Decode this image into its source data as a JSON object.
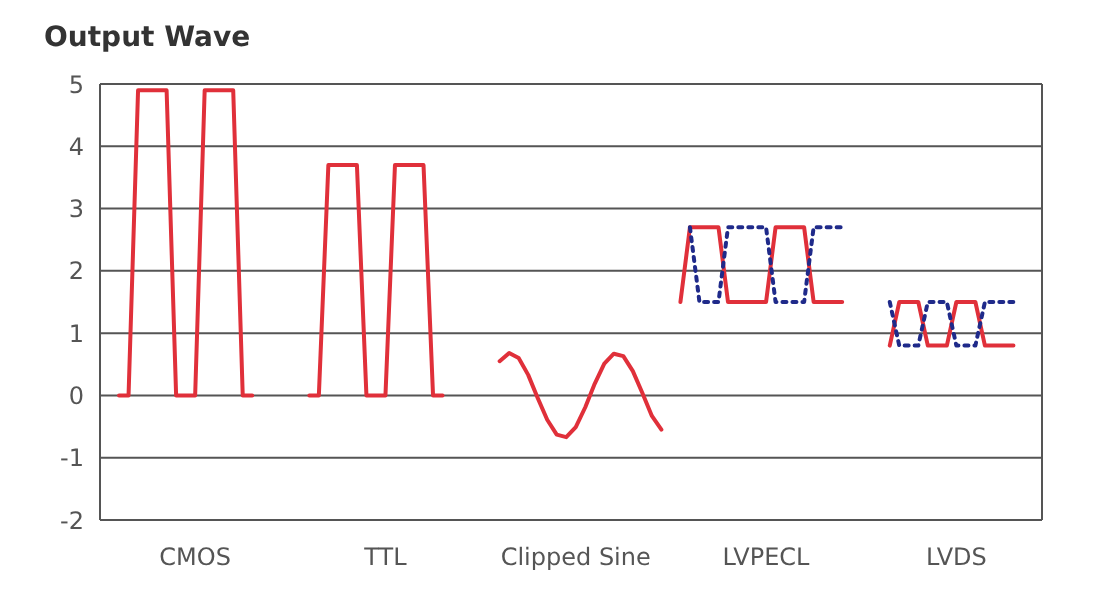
{
  "chart_data": {
    "type": "line",
    "title": "Output Wave",
    "categories": [
      null,
      null,
      null,
      null,
      null,
      null,
      null,
      null,
      null,
      null,
      "CMOS",
      null,
      null,
      null,
      null,
      null,
      null,
      null,
      null,
      null,
      null,
      null,
      null,
      null,
      null,
      null,
      null,
      null,
      null,
      null,
      "TTL",
      null,
      null,
      null,
      null,
      null,
      null,
      null,
      null,
      null,
      null,
      null,
      null,
      null,
      null,
      null,
      null,
      null,
      null,
      null,
      "Clipped Sine",
      null,
      null,
      null,
      null,
      null,
      null,
      null,
      null,
      null,
      null,
      null,
      null,
      null,
      null,
      null,
      null,
      null,
      null,
      null,
      "LVPECL",
      null,
      null,
      null,
      null,
      null,
      null,
      null,
      null,
      null,
      null,
      null,
      null,
      null,
      null,
      null,
      null,
      null,
      null,
      null,
      "LVDS",
      null,
      null,
      null,
      null,
      null,
      null,
      null,
      null,
      null
    ],
    "ylim": [
      -2,
      5
    ],
    "yticks": [
      -2,
      -1,
      0,
      1,
      2,
      3,
      4,
      5
    ],
    "grid": "y",
    "marker": "none",
    "series": [
      {
        "color": "#e0303a",
        "line_style": "solid",
        "values": [
          null,
          null,
          0,
          0,
          4.9,
          4.9,
          4.9,
          4.9,
          0,
          0,
          0,
          4.9,
          4.9,
          4.9,
          4.9,
          0,
          0,
          null,
          null,
          null,
          null,
          null,
          0,
          0,
          3.7,
          3.7,
          3.7,
          3.7,
          0,
          0,
          0,
          3.7,
          3.7,
          3.7,
          3.7,
          0,
          0,
          null,
          null,
          null,
          null,
          null,
          0.55,
          0.68,
          0.6,
          0.33,
          -0.04,
          -0.39,
          -0.63,
          -0.67,
          -0.51,
          -0.19,
          0.19,
          0.51,
          0.67,
          0.63,
          0.39,
          0.04,
          -0.33,
          -0.55,
          null,
          1.5,
          2.7,
          2.7,
          2.7,
          2.7,
          1.5,
          1.5,
          1.5,
          1.5,
          1.5,
          2.7,
          2.7,
          2.7,
          2.7,
          1.5,
          1.5,
          1.5,
          1.5,
          null,
          null,
          null,
          null,
          0.8,
          1.5,
          1.5,
          1.5,
          0.8,
          0.8,
          0.8,
          1.5,
          1.5,
          1.5,
          0.8,
          0.8,
          0.8,
          0.8,
          null,
          null,
          null
        ]
      },
      {
        "color": "#1f2a8a",
        "line_style": "dotted",
        "values": [
          null,
          null,
          null,
          null,
          null,
          null,
          null,
          null,
          null,
          null,
          null,
          null,
          null,
          null,
          null,
          null,
          null,
          null,
          null,
          null,
          null,
          null,
          null,
          null,
          null,
          null,
          null,
          null,
          null,
          null,
          null,
          null,
          null,
          null,
          null,
          null,
          null,
          null,
          null,
          null,
          null,
          null,
          null,
          null,
          null,
          null,
          null,
          null,
          null,
          null,
          null,
          null,
          null,
          null,
          null,
          null,
          null,
          null,
          null,
          null,
          null,
          null,
          2.7,
          1.5,
          1.5,
          1.5,
          2.7,
          2.7,
          2.7,
          2.7,
          2.7,
          1.5,
          1.5,
          1.5,
          1.5,
          2.7,
          2.7,
          2.7,
          2.7,
          null,
          null,
          null,
          null,
          1.5,
          0.8,
          0.8,
          0.8,
          1.5,
          1.5,
          1.5,
          0.8,
          0.8,
          0.8,
          1.5,
          1.5,
          1.5,
          1.5,
          null,
          null,
          null
        ]
      }
    ]
  }
}
